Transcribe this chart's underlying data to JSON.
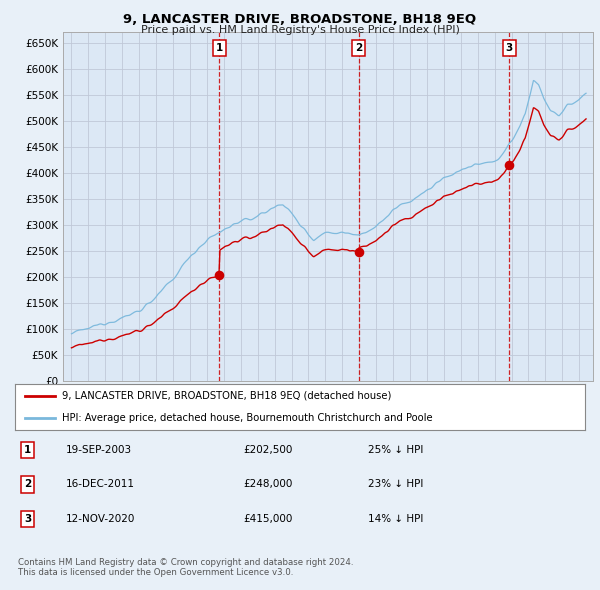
{
  "title": "9, LANCASTER DRIVE, BROADSTONE, BH18 9EQ",
  "subtitle": "Price paid vs. HM Land Registry's House Price Index (HPI)",
  "background_color": "#e8f0f8",
  "plot_bg_color": "#dce8f5",
  "ylabel_ticks": [
    "£0",
    "£50K",
    "£100K",
    "£150K",
    "£200K",
    "£250K",
    "£300K",
    "£350K",
    "£400K",
    "£450K",
    "£500K",
    "£550K",
    "£600K",
    "£650K"
  ],
  "ytick_values": [
    0,
    50000,
    100000,
    150000,
    200000,
    250000,
    300000,
    350000,
    400000,
    450000,
    500000,
    550000,
    600000,
    650000
  ],
  "ylim": [
    0,
    670000
  ],
  "sale_prices": [
    202500,
    248000,
    415000
  ],
  "sale_labels": [
    "1",
    "2",
    "3"
  ],
  "t1": 2003.72,
  "t2": 2011.96,
  "t3": 2020.87,
  "legend_house": "9, LANCASTER DRIVE, BROADSTONE, BH18 9EQ (detached house)",
  "legend_hpi": "HPI: Average price, detached house, Bournemouth Christchurch and Poole",
  "table_rows": [
    [
      "1",
      "19-SEP-2003",
      "£202,500",
      "25% ↓ HPI"
    ],
    [
      "2",
      "16-DEC-2011",
      "£248,000",
      "23% ↓ HPI"
    ],
    [
      "3",
      "12-NOV-2020",
      "£415,000",
      "14% ↓ HPI"
    ]
  ],
  "footer": "Contains HM Land Registry data © Crown copyright and database right 2024.\nThis data is licensed under the Open Government Licence v3.0.",
  "hpi_color": "#7ab8dc",
  "house_color": "#cc0000",
  "vline_color": "#cc0000",
  "grid_color": "#c0c8d8",
  "xmin": 1994.5,
  "xmax": 2025.8
}
